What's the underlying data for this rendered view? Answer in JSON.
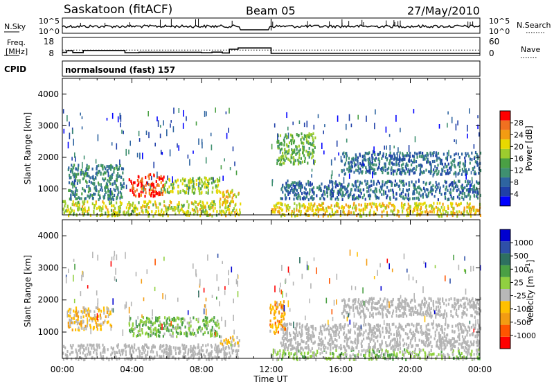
{
  "header": {
    "station": "Saskatoon (fitACF)",
    "beam": "Beam 05",
    "date": "27/May/2010"
  },
  "top_panels": {
    "nsky_label": "N.Sky",
    "nsky_ticks": [
      "10^5",
      "10^0"
    ],
    "nsearch_label": "N.Search",
    "nsearch_ticks": [
      "10^5",
      "10^0"
    ],
    "freq_label_1": "Freq.",
    "freq_label_2": "[MHz]",
    "freq_ticks": [
      "18",
      "8"
    ],
    "nave_label": "Nave",
    "nave_ticks": [
      "60",
      "0"
    ],
    "cpid_label": "CPID",
    "cpid_text": "normalsound (fast) 157",
    "frequency_steps_mhz": [
      [
        0.0,
        10.2
      ],
      [
        0.25,
        11.4
      ],
      [
        0.6,
        10.1
      ],
      [
        1.2,
        11.6
      ],
      [
        3.6,
        10.0
      ],
      [
        4.4,
        10.3
      ],
      [
        8.0,
        10.0
      ],
      [
        8.6,
        10.4
      ],
      [
        9.2,
        9.8
      ],
      [
        9.6,
        12.5
      ],
      [
        10.1,
        13.4
      ],
      [
        12.0,
        9.5
      ],
      [
        24.0,
        9.5
      ]
    ],
    "nave_reference": 18
  },
  "chart_data": [
    {
      "type": "heatmap",
      "name": "power",
      "ylabel": "Slant Range [km]",
      "xlabel": "Time UT",
      "xlim_hours": [
        0,
        24
      ],
      "xticks": [
        "00:00",
        "04:00",
        "08:00",
        "12:00",
        "16:00",
        "20:00",
        "00:00"
      ],
      "ylim_km": [
        180,
        4500
      ],
      "yticks": [
        1000,
        2000,
        3000,
        4000
      ],
      "colorbar": {
        "label": "Power [dB]",
        "ticks": [
          "28",
          "24",
          "20",
          "16",
          "12",
          "8",
          "4"
        ],
        "range": [
          0,
          30
        ],
        "colors": [
          "#0000ff",
          "#1f3fa8",
          "#2e64a0",
          "#3f9070",
          "#4aa044",
          "#9ccc2e",
          "#e8d800",
          "#f39c12",
          "#f07020",
          "#ff0000"
        ]
      },
      "data_gap_hours": [
        10.2,
        11.9
      ],
      "features": [
        {
          "t": [
            0.0,
            10.2
          ],
          "r": [
            180,
            650
          ],
          "power": 18
        },
        {
          "t": [
            0.3,
            3.5
          ],
          "r": [
            700,
            1800
          ],
          "power": 10
        },
        {
          "t": [
            3.8,
            5.8
          ],
          "r": [
            800,
            1500
          ],
          "power": 27
        },
        {
          "t": [
            5.8,
            9.0
          ],
          "r": [
            900,
            1400
          ],
          "power": 17
        },
        {
          "t": [
            9.0,
            10.2
          ],
          "r": [
            600,
            1000
          ],
          "power": 20
        },
        {
          "t": [
            12.0,
            24.0
          ],
          "r": [
            180,
            600
          ],
          "power": 20
        },
        {
          "t": [
            12.3,
            14.5
          ],
          "r": [
            1800,
            2800
          ],
          "power": 14
        },
        {
          "t": [
            12.5,
            24.0
          ],
          "r": [
            700,
            1300
          ],
          "power": 8
        },
        {
          "t": [
            16.0,
            24.0
          ],
          "r": [
            1500,
            2200
          ],
          "power": 8
        }
      ]
    },
    {
      "type": "heatmap",
      "name": "velocity",
      "ylabel": "Slant Range [km]",
      "xlabel": "Time UT",
      "xlim_hours": [
        0,
        24
      ],
      "xticks": [
        "00:00",
        "04:00",
        "08:00",
        "12:00",
        "16:00",
        "20:00",
        "00:00"
      ],
      "ylim_km": [
        180,
        4500
      ],
      "yticks": [
        1000,
        2000,
        3000,
        4000
      ],
      "colorbar": {
        "label": "Velocity [m s^-1]",
        "ticks": [
          "1000",
          "500",
          "100",
          "25",
          "-25",
          "-100",
          "-500",
          "-1000"
        ],
        "range": [
          -1000,
          1000
        ],
        "colors": [
          "#ff0000",
          "#ff5500",
          "#f39c12",
          "#ffc000",
          "#b8b8b8",
          "#90d040",
          "#4aa044",
          "#2e7060",
          "#2e4fa8",
          "#0000d0"
        ]
      },
      "ground_scatter_color": "#b4b4b4",
      "data_gap_hours": [
        10.2,
        11.9
      ],
      "features": [
        {
          "t": [
            0.0,
            10.2
          ],
          "r": [
            180,
            650
          ],
          "velocity": "ground"
        },
        {
          "t": [
            0.3,
            2.8
          ],
          "r": [
            1100,
            1800
          ],
          "velocity": -300
        },
        {
          "t": [
            3.8,
            9.0
          ],
          "r": [
            900,
            1500
          ],
          "velocity": 150
        },
        {
          "t": [
            9.0,
            10.2
          ],
          "r": [
            600,
            900
          ],
          "velocity": -200
        },
        {
          "t": [
            11.9,
            12.8
          ],
          "r": [
            1000,
            2000
          ],
          "velocity": -400
        },
        {
          "t": [
            12.0,
            24.0
          ],
          "r": [
            180,
            500
          ],
          "velocity": 60
        },
        {
          "t": [
            12.5,
            24.0
          ],
          "r": [
            500,
            1300
          ],
          "velocity": "ground"
        },
        {
          "t": [
            16.0,
            24.0
          ],
          "r": [
            1500,
            2100
          ],
          "velocity": "ground"
        }
      ]
    }
  ]
}
